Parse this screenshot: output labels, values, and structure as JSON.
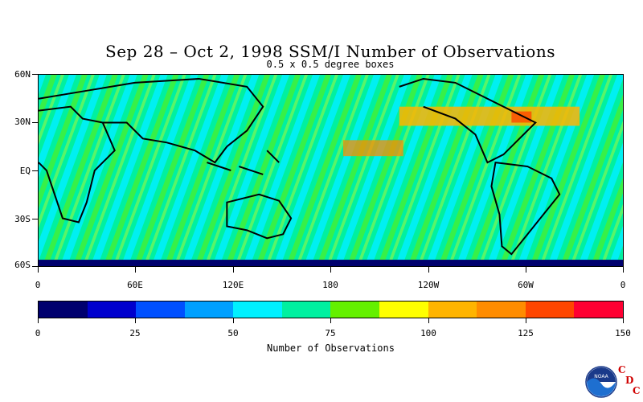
{
  "title": "Sep 28 – Oct 2, 1998 SSM/I Number of Observations",
  "subtitle": "0.5 x 0.5 degree boxes",
  "map": {
    "lat_labels": [
      "60N",
      "30N",
      "EQ",
      "30S",
      "60S"
    ],
    "lon_labels": [
      "0",
      "60E",
      "120E",
      "180",
      "120W",
      "60W",
      "0"
    ]
  },
  "colorbar": {
    "colors": [
      "#00006e",
      "#0000cd",
      "#0050ff",
      "#00a0ff",
      "#00f0ff",
      "#00f0a0",
      "#64f000",
      "#ffff00",
      "#ffb400",
      "#ff8c00",
      "#ff4600",
      "#ff0032"
    ],
    "tick_labels": [
      "0",
      "25",
      "50",
      "75",
      "100",
      "125",
      "150"
    ],
    "label": "Number of Observations"
  },
  "logos": {
    "noaa": "NOAA",
    "cdc": [
      "C",
      "D",
      "C"
    ]
  },
  "icons": [
    "noaa-logo-icon",
    "cdc-logo-icon"
  ]
}
